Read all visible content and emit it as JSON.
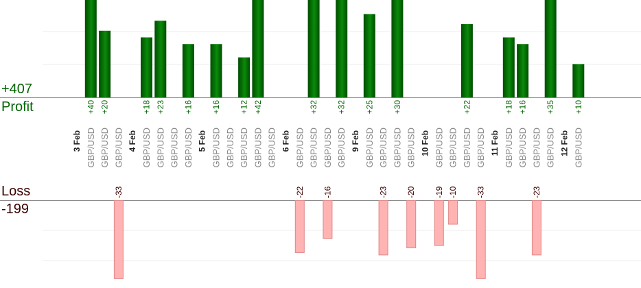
{
  "summary": {
    "profit_total": "+407",
    "profit_label": "Profit",
    "loss_label": "Loss",
    "loss_total": "-199"
  },
  "colors": {
    "profit_text": "#006400",
    "profit_bar_dark": "#004d00",
    "profit_bar_light": "#0a8a0a",
    "loss_text": "#3a0000",
    "loss_bar": "#ffb3b3",
    "loss_bar_border": "#e08585",
    "pair_text": "#888888",
    "date_text": "#222222"
  },
  "chart_data": {
    "type": "bar",
    "profit_scale_max": 35,
    "loss_scale_max": 30,
    "columns": [
      {
        "date": "3 Feb"
      },
      {
        "pair": "GBP/USD",
        "value": 40,
        "label": "+40"
      },
      {
        "pair": "GBP/USD",
        "value": 20,
        "label": "+20"
      },
      {
        "pair": "GBP/USD",
        "value": -33,
        "label": "-33"
      },
      {
        "date": "4 Feb"
      },
      {
        "pair": "GBP/USD",
        "value": 18,
        "label": "+18"
      },
      {
        "pair": "GBP/USD",
        "value": 23,
        "label": "+23"
      },
      {
        "pair": "GBP/USD"
      },
      {
        "pair": "GBP/USD",
        "value": 16,
        "label": "+16"
      },
      {
        "date": "5 Feb"
      },
      {
        "pair": "GBP/USD",
        "value": 16,
        "label": "+16"
      },
      {
        "pair": "GBP/USD"
      },
      {
        "pair": "GBP/USD",
        "value": 12,
        "label": "+12"
      },
      {
        "pair": "GBP/USD",
        "value": 42,
        "label": "+42"
      },
      {
        "pair": "GBP/USD"
      },
      {
        "date": "6 Feb"
      },
      {
        "pair": "GBP/USD",
        "value": -22,
        "label": "-22"
      },
      {
        "pair": "GBP/USD",
        "value": 32,
        "label": "+32"
      },
      {
        "pair": "GBP/USD",
        "value": -16,
        "label": "-16"
      },
      {
        "pair": "GBP/USD",
        "value": 32,
        "label": "+32"
      },
      {
        "date": "9 Feb"
      },
      {
        "pair": "GBP/USD",
        "value": 25,
        "label": "+25"
      },
      {
        "pair": "GBP/USD",
        "value": -23,
        "label": "-23"
      },
      {
        "pair": "GBP/USD",
        "value": 30,
        "label": "+30"
      },
      {
        "pair": "GBP/USD",
        "value": -20,
        "label": "-20"
      },
      {
        "date": "10 Feb"
      },
      {
        "pair": "GBP/USD",
        "value": -19,
        "label": "-19"
      },
      {
        "pair": "GBP/USD",
        "value": -10,
        "label": "-10"
      },
      {
        "pair": "GBP/USD",
        "value": 22,
        "label": "+22"
      },
      {
        "pair": "GBP/USD",
        "value": -33,
        "label": "-33"
      },
      {
        "date": "11 Feb"
      },
      {
        "pair": "GBP/USD",
        "value": 18,
        "label": "+18"
      },
      {
        "pair": "GBP/USD",
        "value": 16,
        "label": "+16"
      },
      {
        "pair": "GBP/USD",
        "value": -23,
        "label": "-23"
      },
      {
        "pair": "GBP/USD",
        "value": 35,
        "label": "+35"
      },
      {
        "date": "12 Feb"
      },
      {
        "pair": "GBP/USD",
        "value": 10,
        "label": "+10"
      }
    ]
  }
}
